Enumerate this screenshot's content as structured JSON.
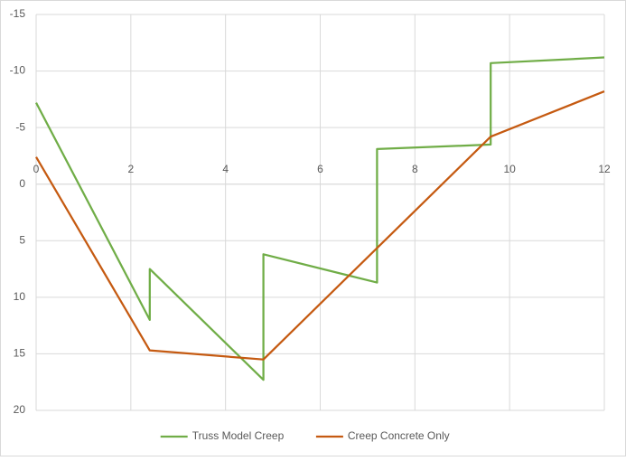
{
  "chart_data": {
    "type": "line",
    "series": [
      {
        "name": "Truss Model Creep",
        "color": "#70ad47",
        "x": [
          0,
          2.4,
          2.4,
          4.8,
          4.8,
          7.2,
          7.2,
          9.6,
          9.6,
          12
        ],
        "values": [
          -7.2,
          12,
          7.5,
          17.3,
          6.2,
          8.7,
          -3.1,
          -3.5,
          -10.7,
          -11.2
        ]
      },
      {
        "name": "Creep Concrete Only",
        "color": "#c55a11",
        "x": [
          0,
          2.4,
          4.8,
          9.6,
          12
        ],
        "values": [
          -2.4,
          14.7,
          15.5,
          -4.2,
          -8.2
        ]
      }
    ],
    "xlim": [
      0,
      12
    ],
    "xticks": [
      0,
      2,
      4,
      6,
      8,
      10,
      12
    ],
    "ylim": [
      -15,
      20
    ],
    "yticks": [
      -15,
      -10,
      -5,
      0,
      5,
      10,
      15,
      20
    ],
    "y_reversed": true,
    "grid": true,
    "legend": "bottom"
  }
}
